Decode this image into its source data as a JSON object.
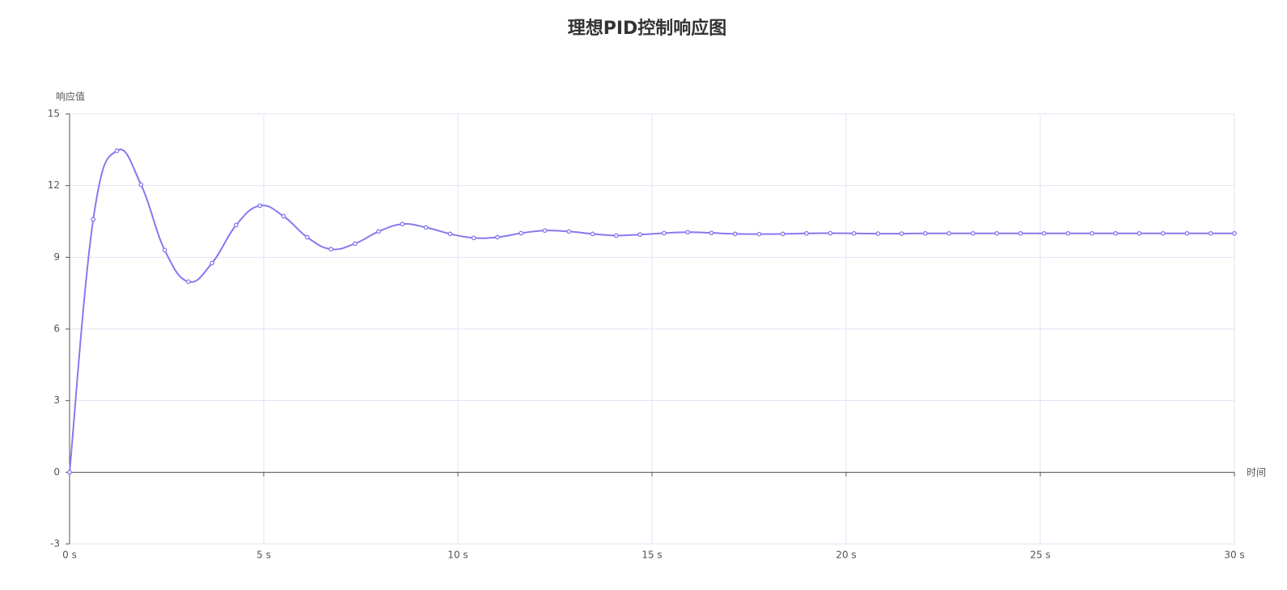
{
  "chart_data": {
    "type": "line",
    "title": "理想PID控制响应图",
    "x_label": "时间",
    "y_label": "响应值",
    "x": [
      0,
      0.61,
      1.22,
      1.84,
      2.45,
      3.06,
      3.67,
      4.29,
      4.9,
      5.51,
      6.12,
      6.73,
      7.35,
      7.96,
      8.57,
      9.18,
      9.8,
      10.41,
      11.02,
      11.63,
      12.24,
      12.86,
      13.47,
      14.08,
      14.69,
      15.31,
      15.92,
      16.53,
      17.14,
      17.76,
      18.37,
      18.98,
      19.59,
      20.2,
      20.82,
      21.43,
      22.04,
      22.65,
      23.27,
      23.88,
      24.49,
      25.1,
      25.71,
      26.33,
      26.94,
      27.55,
      28.16,
      28.78,
      29.39,
      30
    ],
    "series": [
      {
        "name": "响应值",
        "color": "#8579f0",
        "values": [
          0,
          10.59,
          13.46,
          12.04,
          9.3,
          7.98,
          8.76,
          10.35,
          11.16,
          10.72,
          9.84,
          9.34,
          9.57,
          10.08,
          10.39,
          10.25,
          9.98,
          9.81,
          9.84,
          10.01,
          10.12,
          10.08,
          9.98,
          9.91,
          9.95,
          10.01,
          10.05,
          10.02,
          9.98,
          9.97,
          9.98,
          10,
          10.01,
          10,
          9.99,
          9.99,
          10,
          10,
          10,
          10,
          10,
          10,
          10,
          10,
          10,
          10,
          10,
          10,
          10,
          10
        ]
      }
    ],
    "xlim": [
      0,
      30
    ],
    "xticks": [
      {
        "value": 0,
        "label": "0 s"
      },
      {
        "value": 5,
        "label": "5 s"
      },
      {
        "value": 10,
        "label": "10 s"
      },
      {
        "value": 15,
        "label": "15 s"
      },
      {
        "value": 20,
        "label": "20 s"
      },
      {
        "value": 25,
        "label": "25 s"
      },
      {
        "value": 30,
        "label": "30 s"
      }
    ],
    "ylim": [
      -3,
      15
    ],
    "yticks": [
      -3,
      0,
      3,
      6,
      9,
      12,
      15
    ],
    "grid": true
  }
}
